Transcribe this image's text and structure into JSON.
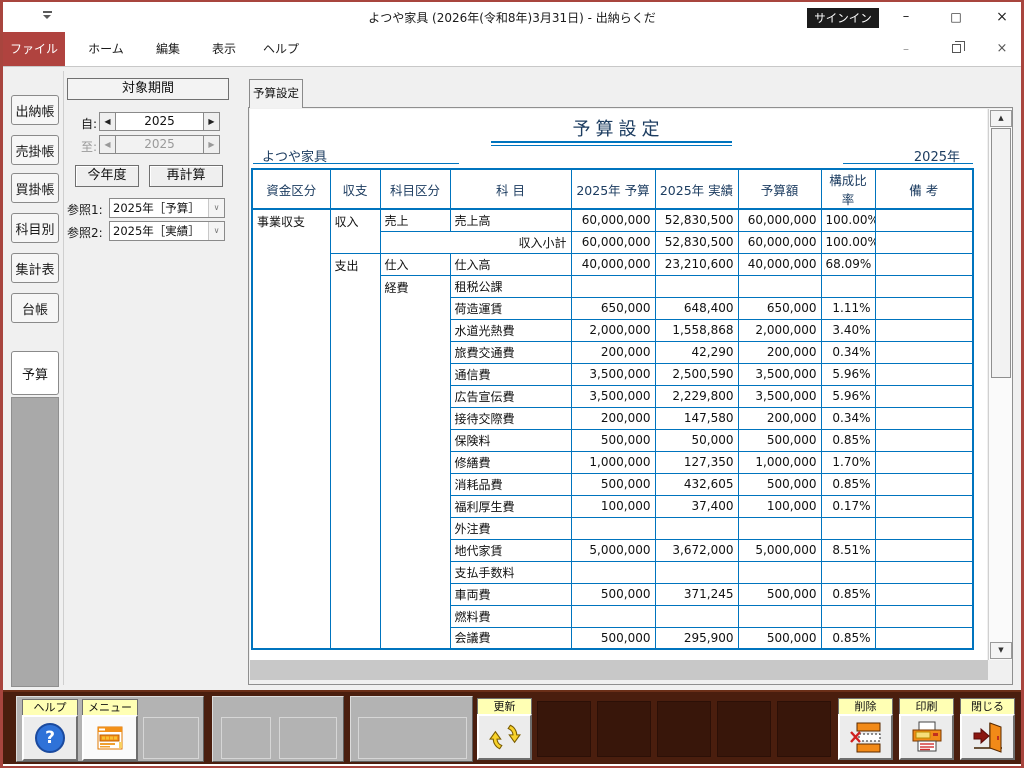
{
  "window": {
    "title": "よつや家具 (2026年(令和8年)3月31日)  -  出納らくだ",
    "signin": "サインイン",
    "minimize": "–",
    "maximize": "□",
    "close": "×"
  },
  "menu": {
    "items": [
      {
        "label": "ファイル",
        "active": true
      },
      {
        "label": "ホーム",
        "active": false
      },
      {
        "label": "編集",
        "active": false
      },
      {
        "label": "表示",
        "active": false
      },
      {
        "label": "ヘルプ",
        "active": false
      }
    ]
  },
  "sidebar": {
    "tabs": [
      {
        "label": "出納帳",
        "active": false
      },
      {
        "label": "売掛帳",
        "active": false
      },
      {
        "label": "買掛帳",
        "active": false
      },
      {
        "label": "科目別",
        "active": false
      },
      {
        "label": "集計表",
        "active": false
      },
      {
        "label": "台帳",
        "active": false
      },
      {
        "label": "予算",
        "active": true
      }
    ]
  },
  "period": {
    "title": "対象期間",
    "from_label": "自:",
    "from_value": "2025",
    "to_label": "至:",
    "to_value": "2025",
    "this_year_button": "今年度",
    "recalc_button": "再計算",
    "ref1_label": "参照1:",
    "ref1_value": "2025年［予算］",
    "ref2_label": "参照2:",
    "ref2_value": "2025年［実績］"
  },
  "doc": {
    "tab": "予算設定",
    "title": "予算設定",
    "company": "よつや家具",
    "year": "2025年",
    "table": {
      "headers": [
        "資金区分",
        "収支",
        "科目区分",
        "科  目",
        "2025年 予算",
        "2025年 実績",
        "予算額",
        "構成比率",
        "備 考"
      ],
      "rows": [
        [
          {
            "t": "事業収支",
            "rs": 20,
            "al": "l"
          },
          {
            "t": "収入",
            "rs": 2,
            "al": "l"
          },
          {
            "t": "売上",
            "al": "l"
          },
          {
            "t": "売上高",
            "al": "l"
          },
          {
            "t": "60,000,000",
            "al": "r"
          },
          {
            "t": "52,830,500",
            "al": "r"
          },
          {
            "t": "60,000,000",
            "al": "r",
            "d": 1
          },
          {
            "t": "100.00%",
            "al": "r"
          },
          {
            "t": ""
          }
        ],
        [
          {
            "t": "収入小計",
            "cs": 2,
            "al": "r"
          },
          {
            "t": "60,000,000",
            "al": "r"
          },
          {
            "t": "52,830,500",
            "al": "r"
          },
          {
            "t": "60,000,000",
            "al": "r",
            "d": 1
          },
          {
            "t": "100.00%",
            "al": "r"
          },
          {
            "t": ""
          }
        ],
        [
          {
            "t": "支出",
            "rs": 18,
            "al": "l"
          },
          {
            "t": "仕入",
            "al": "l"
          },
          {
            "t": "仕入高",
            "al": "l"
          },
          {
            "t": "40,000,000",
            "al": "r"
          },
          {
            "t": "23,210,600",
            "al": "r"
          },
          {
            "t": "40,000,000",
            "al": "r",
            "d": 1
          },
          {
            "t": "68.09%",
            "al": "r"
          },
          {
            "t": ""
          }
        ],
        [
          {
            "t": "経費",
            "rs": 17,
            "al": "l"
          },
          {
            "t": "租税公課",
            "al": "l"
          },
          {
            "t": ""
          },
          {
            "t": ""
          },
          {
            "t": "",
            "d": 1
          },
          {
            "t": ""
          },
          {
            "t": ""
          }
        ],
        [
          {
            "t": "荷造運賃",
            "al": "l"
          },
          {
            "t": "650,000",
            "al": "r"
          },
          {
            "t": "648,400",
            "al": "r"
          },
          {
            "t": "650,000",
            "al": "r",
            "d": 1
          },
          {
            "t": "1.11%",
            "al": "r"
          },
          {
            "t": ""
          }
        ],
        [
          {
            "t": "水道光熱費",
            "al": "l"
          },
          {
            "t": "2,000,000",
            "al": "r"
          },
          {
            "t": "1,558,868",
            "al": "r"
          },
          {
            "t": "2,000,000",
            "al": "r",
            "d": 1
          },
          {
            "t": "3.40%",
            "al": "r"
          },
          {
            "t": ""
          }
        ],
        [
          {
            "t": "旅費交通費",
            "al": "l"
          },
          {
            "t": "200,000",
            "al": "r"
          },
          {
            "t": "42,290",
            "al": "r"
          },
          {
            "t": "200,000",
            "al": "r",
            "d": 1
          },
          {
            "t": "0.34%",
            "al": "r"
          },
          {
            "t": ""
          }
        ],
        [
          {
            "t": "通信費",
            "al": "l"
          },
          {
            "t": "3,500,000",
            "al": "r"
          },
          {
            "t": "2,500,590",
            "al": "r"
          },
          {
            "t": "3,500,000",
            "al": "r",
            "d": 1
          },
          {
            "t": "5.96%",
            "al": "r"
          },
          {
            "t": ""
          }
        ],
        [
          {
            "t": "広告宣伝費",
            "al": "l"
          },
          {
            "t": "3,500,000",
            "al": "r"
          },
          {
            "t": "2,229,800",
            "al": "r"
          },
          {
            "t": "3,500,000",
            "al": "r",
            "d": 1
          },
          {
            "t": "5.96%",
            "al": "r"
          },
          {
            "t": ""
          }
        ],
        [
          {
            "t": "接待交際費",
            "al": "l"
          },
          {
            "t": "200,000",
            "al": "r"
          },
          {
            "t": "147,580",
            "al": "r"
          },
          {
            "t": "200,000",
            "al": "r",
            "d": 1
          },
          {
            "t": "0.34%",
            "al": "r"
          },
          {
            "t": ""
          }
        ],
        [
          {
            "t": "保険料",
            "al": "l"
          },
          {
            "t": "500,000",
            "al": "r"
          },
          {
            "t": "50,000",
            "al": "r"
          },
          {
            "t": "500,000",
            "al": "r",
            "d": 1
          },
          {
            "t": "0.85%",
            "al": "r"
          },
          {
            "t": ""
          }
        ],
        [
          {
            "t": "修繕費",
            "al": "l"
          },
          {
            "t": "1,000,000",
            "al": "r"
          },
          {
            "t": "127,350",
            "al": "r"
          },
          {
            "t": "1,000,000",
            "al": "r",
            "d": 1
          },
          {
            "t": "1.70%",
            "al": "r"
          },
          {
            "t": ""
          }
        ],
        [
          {
            "t": "消耗品費",
            "al": "l"
          },
          {
            "t": "500,000",
            "al": "r"
          },
          {
            "t": "432,605",
            "al": "r"
          },
          {
            "t": "500,000",
            "al": "r",
            "d": 1
          },
          {
            "t": "0.85%",
            "al": "r"
          },
          {
            "t": ""
          }
        ],
        [
          {
            "t": "福利厚生費",
            "al": "l"
          },
          {
            "t": "100,000",
            "al": "r"
          },
          {
            "t": "37,400",
            "al": "r"
          },
          {
            "t": "100,000",
            "al": "r",
            "d": 1
          },
          {
            "t": "0.17%",
            "al": "r"
          },
          {
            "t": ""
          }
        ],
        [
          {
            "t": "外注費",
            "al": "l"
          },
          {
            "t": ""
          },
          {
            "t": ""
          },
          {
            "t": "",
            "d": 1
          },
          {
            "t": ""
          },
          {
            "t": ""
          }
        ],
        [
          {
            "t": "地代家賃",
            "al": "l"
          },
          {
            "t": "5,000,000",
            "al": "r"
          },
          {
            "t": "3,672,000",
            "al": "r"
          },
          {
            "t": "5,000,000",
            "al": "r",
            "d": 1
          },
          {
            "t": "8.51%",
            "al": "r"
          },
          {
            "t": ""
          }
        ],
        [
          {
            "t": "支払手数料",
            "al": "l"
          },
          {
            "t": ""
          },
          {
            "t": ""
          },
          {
            "t": "",
            "d": 1
          },
          {
            "t": ""
          },
          {
            "t": ""
          }
        ],
        [
          {
            "t": "車両費",
            "al": "l"
          },
          {
            "t": "500,000",
            "al": "r"
          },
          {
            "t": "371,245",
            "al": "r"
          },
          {
            "t": "500,000",
            "al": "r",
            "d": 1
          },
          {
            "t": "0.85%",
            "al": "r"
          },
          {
            "t": ""
          }
        ],
        [
          {
            "t": "燃料費",
            "al": "l"
          },
          {
            "t": ""
          },
          {
            "t": ""
          },
          {
            "t": "",
            "d": 1
          },
          {
            "t": ""
          },
          {
            "t": ""
          }
        ],
        [
          {
            "t": "会議費",
            "al": "l"
          },
          {
            "t": "500,000",
            "al": "r"
          },
          {
            "t": "295,900",
            "al": "r"
          },
          {
            "t": "500,000",
            "al": "r",
            "d": 1
          },
          {
            "t": "0.85%",
            "al": "r"
          },
          {
            "t": ""
          }
        ]
      ]
    }
  },
  "toolbar": {
    "help": "ヘルプ",
    "menu": "メニュー",
    "update": "更新",
    "delete": "削除",
    "print": "印刷",
    "close": "閉じる"
  },
  "colors": {
    "accent_red": "#b0433f",
    "table_blue": "#0074be",
    "navy_text": "#1c3c60",
    "toolbar_brown": "#4a1e0e",
    "label_yellow": "#ffffb4",
    "signin_black": "#1b1b1b"
  }
}
